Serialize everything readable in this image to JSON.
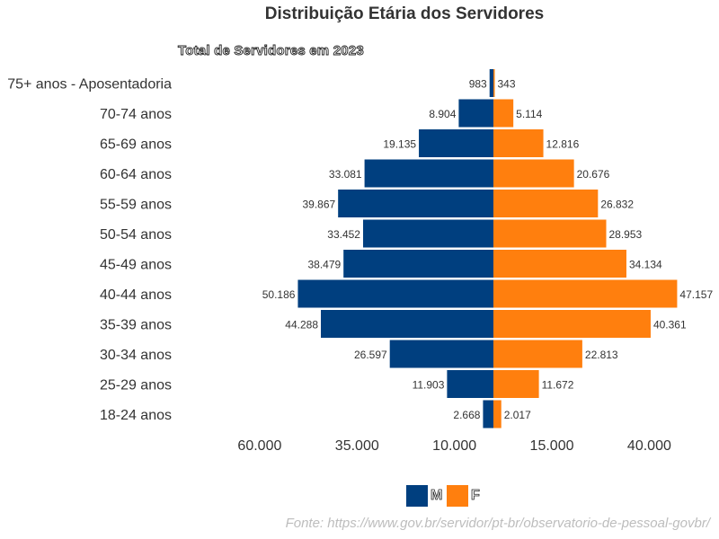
{
  "chart_data": {
    "type": "bar",
    "orientation": "horizontal-population-pyramid",
    "title": "Distribuição Etária dos Servidores",
    "subtitle": "Total de Servidores em 2023",
    "categories": [
      "75+ anos - Aposentadoria",
      "70-74 anos",
      "65-69 anos",
      "60-64 anos",
      "55-59 anos",
      "50-54 anos",
      "45-49 anos",
      "40-44 anos",
      "35-39 anos",
      "30-34 anos",
      "25-29 anos",
      "18-24 anos"
    ],
    "series": [
      {
        "name": "M",
        "color": "#003f7f",
        "values": [
          983,
          8904,
          19135,
          33081,
          39867,
          33452,
          38479,
          50186,
          44288,
          26597,
          11903,
          2668
        ],
        "labels": [
          "983",
          "8.904",
          "19.135",
          "33.081",
          "39.867",
          "33.452",
          "38.479",
          "50.186",
          "44.288",
          "26.597",
          "11.903",
          "2.668"
        ]
      },
      {
        "name": "F",
        "color": "#ff7f0e",
        "values": [
          343,
          5114,
          12816,
          20676,
          26832,
          28953,
          34134,
          47157,
          40361,
          22813,
          11672,
          2017
        ],
        "labels": [
          "343",
          "5.114",
          "12.816",
          "20.676",
          "26.832",
          "28.953",
          "34.134",
          "47.157",
          "40.361",
          "22.813",
          "11.672",
          "2.017"
        ]
      }
    ],
    "x_ticks": [
      {
        "value": -60000,
        "label": "60.000"
      },
      {
        "value": -35000,
        "label": "35.000"
      },
      {
        "value": -10000,
        "label": "10.000"
      },
      {
        "value": 15000,
        "label": "15.000"
      },
      {
        "value": 40000,
        "label": "40.000"
      }
    ],
    "xlim": [
      -60000,
      50000
    ],
    "grid": false,
    "legend_position": "bottom"
  },
  "legend": {
    "m_label": "M",
    "f_label": "F"
  },
  "source": "Fonte: https://www.gov.br/servidor/pt-br/observatorio-de-pessoal-govbr/"
}
